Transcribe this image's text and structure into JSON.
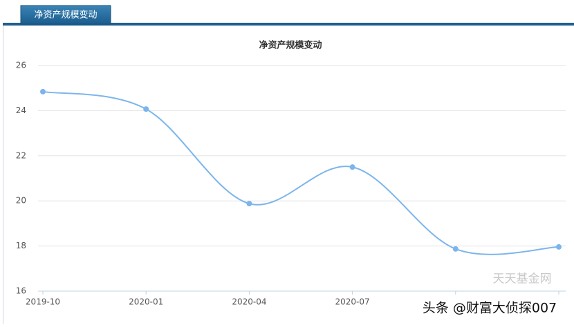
{
  "tab": "净资产规模变动",
  "chart_data": {
    "type": "line",
    "title": "净资产规模变动",
    "categories": [
      "2019-10",
      "2020-01",
      "2020-04",
      "2020-07",
      null,
      null
    ],
    "series": [
      {
        "name": "净资产规模",
        "color": "#7cb5ec",
        "values": [
          24.84,
          24.07,
          19.88,
          21.5,
          17.87,
          17.96
        ]
      }
    ],
    "ylim": [
      16,
      26
    ],
    "yticks": [
      16,
      18,
      20,
      22,
      24,
      26
    ],
    "grid": true,
    "smooth": true
  },
  "watermarks": [
    "天天基金网",
    "头条 @财富大侦探007"
  ]
}
